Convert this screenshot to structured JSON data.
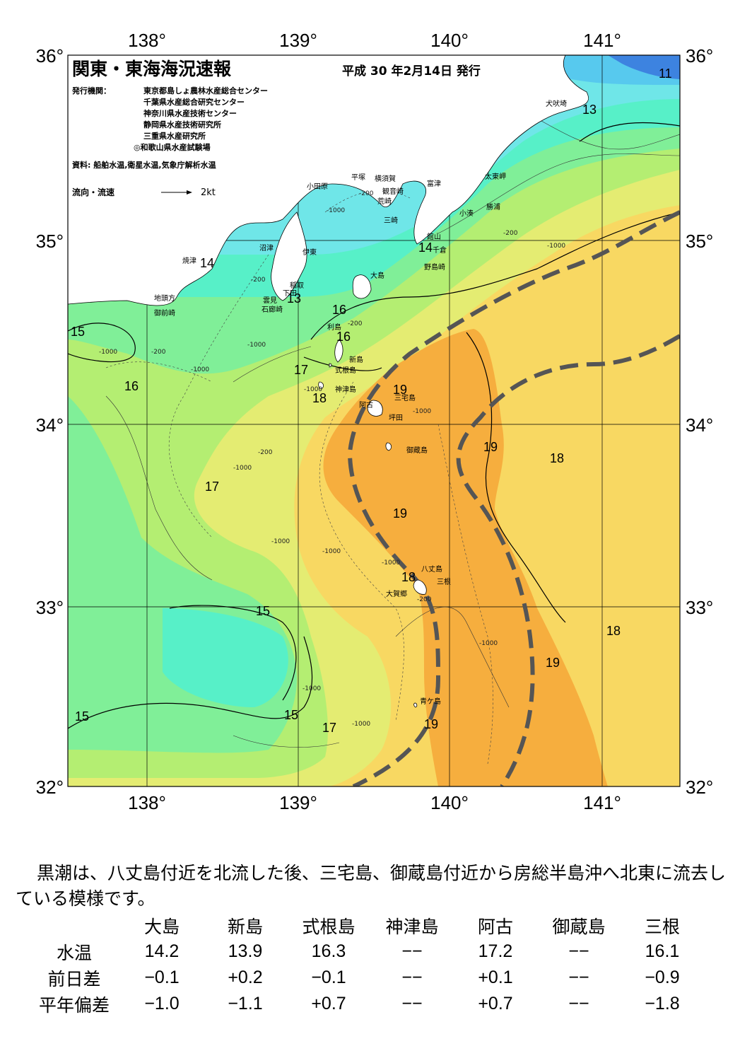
{
  "header": {
    "title": "関東・東海海況速報",
    "date": "平成 30 年2月14日 発行",
    "issuer_label": "発行機関：",
    "issuers": [
      "東京都島しょ農林水産総合センター",
      "千葉県水産総合研究センター",
      "神奈川県水産技術センター",
      "静岡県水産技術研究所",
      "三重県水産研究所",
      "◎和歌山県水産試験場"
    ],
    "source": "資料: 船舶水温,衛星水温,気象庁解析水温",
    "legend_label": "流向・流速",
    "legend_speed": "2kt"
  },
  "axes": {
    "lon_labels": [
      "138°",
      "139°",
      "140°",
      "141°"
    ],
    "lat_labels": [
      "36°",
      "35°",
      "34°",
      "33°",
      "32°"
    ]
  },
  "colors": {
    "t11": "#3d83e0",
    "t12": "#57c9ee",
    "t13": "#6fe6e8",
    "t14": "#57f0c8",
    "t15": "#80ef98",
    "t16": "#b4ee72",
    "t17": "#e4ec72",
    "t18": "#f8d862",
    "t19": "#f6ae3e",
    "land": "#ffffff",
    "kuroshio": "#555555"
  },
  "isotherm_labels": [
    "11",
    "13",
    "14",
    "14",
    "13",
    "15",
    "16",
    "16",
    "17",
    "18",
    "16",
    "17",
    "19",
    "19",
    "18",
    "19",
    "18",
    "15",
    "18",
    "19",
    "15",
    "15",
    "17",
    "19"
  ],
  "depth_labels": [
    "-200",
    "-200",
    "-1000",
    "-1000",
    "-1000",
    "-200",
    "-1000",
    "-200",
    "-1000",
    "-1000",
    "-200",
    "-1000",
    "-1000",
    "-1000",
    "-1000",
    "-1000",
    "-1000",
    "-1000",
    "-200",
    "-1000",
    "-200"
  ],
  "place_names": [
    "犬吠埼",
    "平塚",
    "横須賀",
    "小田原",
    "富津",
    "太東岬",
    "観音崎",
    "荒崎",
    "勝浦",
    "三崎",
    "小湊",
    "館山",
    "千倉",
    "野島崎",
    "大島",
    "沼津",
    "伊東",
    "焼津",
    "稲取",
    "下田",
    "雲見",
    "石廊崎",
    "地頭方",
    "御前崎",
    "利島",
    "新島",
    "式根島",
    "神津島",
    "三宅島",
    "阿古",
    "坪田",
    "御蔵島",
    "八丈島",
    "三根",
    "大賀郷",
    "青ケ島"
  ],
  "description": "黒潮は、八丈島付近を北流した後、三宅島、御蔵島付近から房総半島沖へ北東に流去している模様です。",
  "table": {
    "columns": [
      "大島",
      "新島",
      "式根島",
      "神津島",
      "阿古",
      "御蔵島",
      "三根"
    ],
    "rows": [
      {
        "label": "水温",
        "values": [
          "14.2",
          "13.9",
          "16.3",
          "−−",
          "17.2",
          "−−",
          "16.1"
        ]
      },
      {
        "label": "前日差",
        "values": [
          "−0.1",
          "+0.2",
          "−0.1",
          "−−",
          "+0.1",
          "−−",
          "−0.9"
        ]
      },
      {
        "label": "平年偏差",
        "values": [
          "−1.0",
          "−1.1",
          "+0.7",
          "−−",
          "+0.7",
          "−−",
          "−1.8"
        ]
      }
    ]
  }
}
